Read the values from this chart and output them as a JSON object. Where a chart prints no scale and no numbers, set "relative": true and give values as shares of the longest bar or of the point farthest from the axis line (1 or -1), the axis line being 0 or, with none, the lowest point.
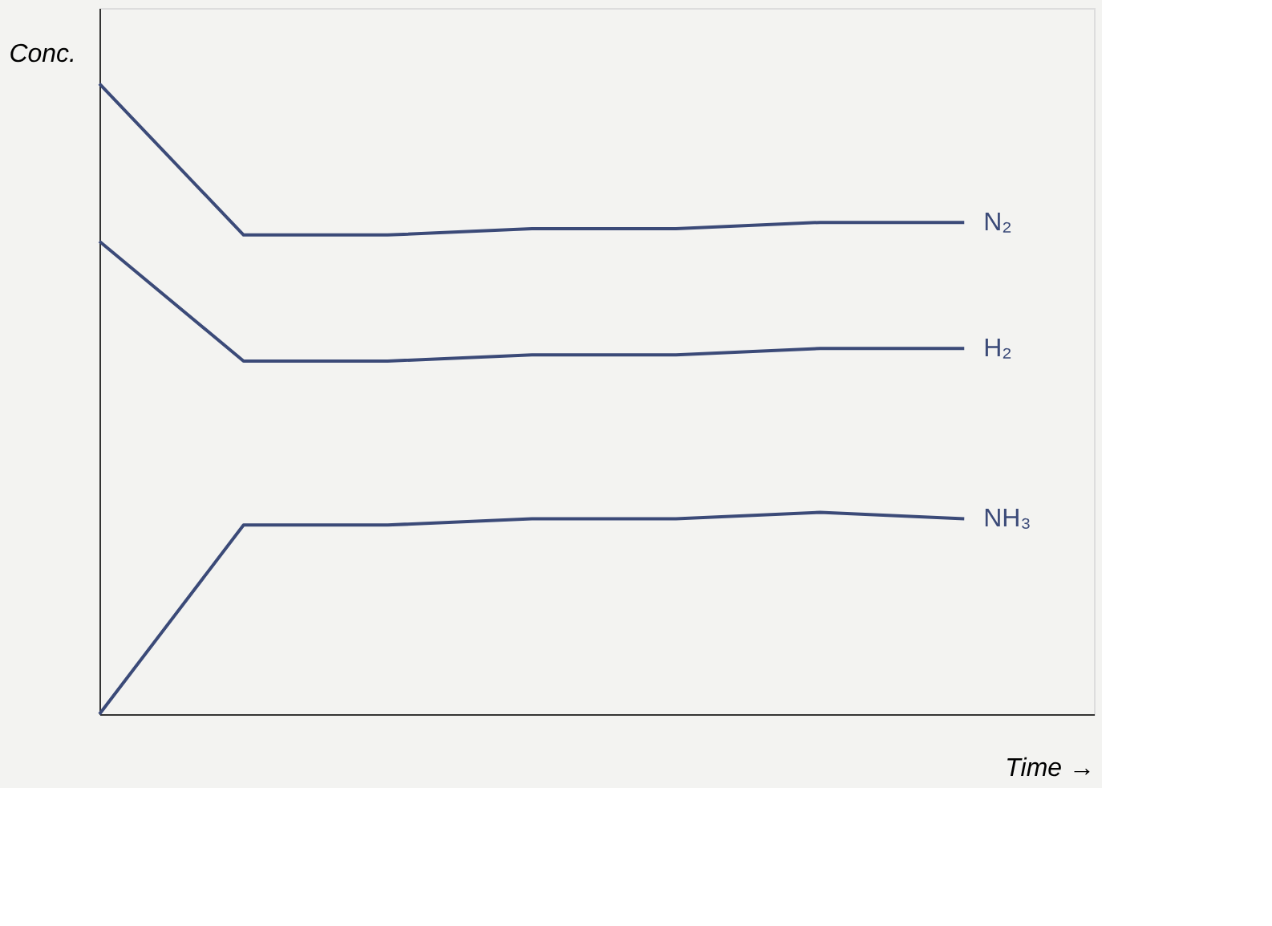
{
  "chart_data": {
    "type": "line",
    "relative": true,
    "xlabel": "Time →",
    "ylabel": "Conc.",
    "tick_labels": false,
    "marker": "none",
    "categories": [
      null,
      null,
      null,
      null,
      null,
      null,
      null
    ],
    "series": [
      {
        "name": "N₂",
        "color": "#3b4a78",
        "values": [
          1,
          0.76,
          0.76,
          0.77,
          0.77,
          0.78,
          0.78
        ]
      },
      {
        "name": "H₂",
        "color": "#3b4a78",
        "values": [
          0.75,
          0.56,
          0.56,
          0.57,
          0.57,
          0.58,
          0.58
        ]
      },
      {
        "name": "NH₃",
        "color": "#3b4a78",
        "values": [
          0,
          0.3,
          0.3,
          0.31,
          0.31,
          0.32,
          0.31
        ]
      }
    ]
  }
}
